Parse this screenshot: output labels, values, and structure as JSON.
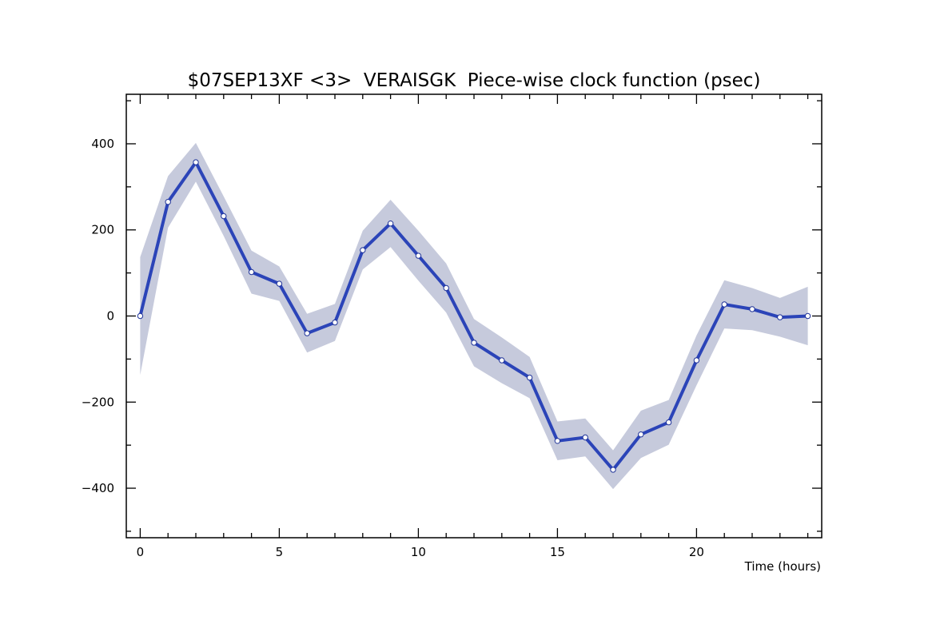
{
  "chart_data": {
    "type": "line",
    "title": "$07SEP13XF <3>  VERAISGK  Piece-wise clock function (psec)",
    "xlabel": "Time (hours)",
    "ylabel": "",
    "xlim": [
      -0.5,
      24.5
    ],
    "ylim": [
      -515,
      515
    ],
    "x_ticks": [
      0,
      5,
      10,
      15,
      20
    ],
    "y_ticks": [
      -400,
      -200,
      0,
      200,
      400
    ],
    "x_tick_labels": [
      "0",
      "5",
      "10",
      "15",
      "20"
    ],
    "y_tick_labels": [
      "−400",
      "−200",
      "0",
      "200",
      "400"
    ],
    "grid": false,
    "legend": "none",
    "series": [
      {
        "x": [
          0,
          1,
          2,
          3,
          4,
          5,
          6,
          7,
          8,
          9,
          10,
          11,
          12,
          13,
          14,
          15,
          16,
          17,
          18,
          19,
          20,
          21,
          22,
          23,
          24
        ],
        "y": [
          0,
          265,
          357,
          232,
          102,
          75,
          -40,
          -15,
          153,
          215,
          140,
          65,
          -62,
          -103,
          -143,
          -290,
          -282,
          -357,
          -275,
          -247,
          -103,
          27,
          16,
          -3,
          0
        ],
        "upper": [
          137,
          325,
          402,
          278,
          152,
          115,
          5,
          28,
          198,
          270,
          198,
          122,
          -7,
          -50,
          -95,
          -245,
          -238,
          -312,
          -220,
          -195,
          -45,
          83,
          65,
          42,
          68
        ],
        "lower": [
          -137,
          205,
          312,
          186,
          52,
          35,
          -85,
          -58,
          108,
          160,
          82,
          8,
          -117,
          -156,
          -191,
          -335,
          -326,
          -402,
          -330,
          -299,
          -161,
          -29,
          -33,
          -48,
          -68
        ]
      }
    ],
    "colors": {
      "line": "#2b44b8",
      "band": "#c6cadc",
      "marker_fill": "#ffffff",
      "marker_stroke": "#1f3399",
      "axis": "#000000"
    }
  }
}
